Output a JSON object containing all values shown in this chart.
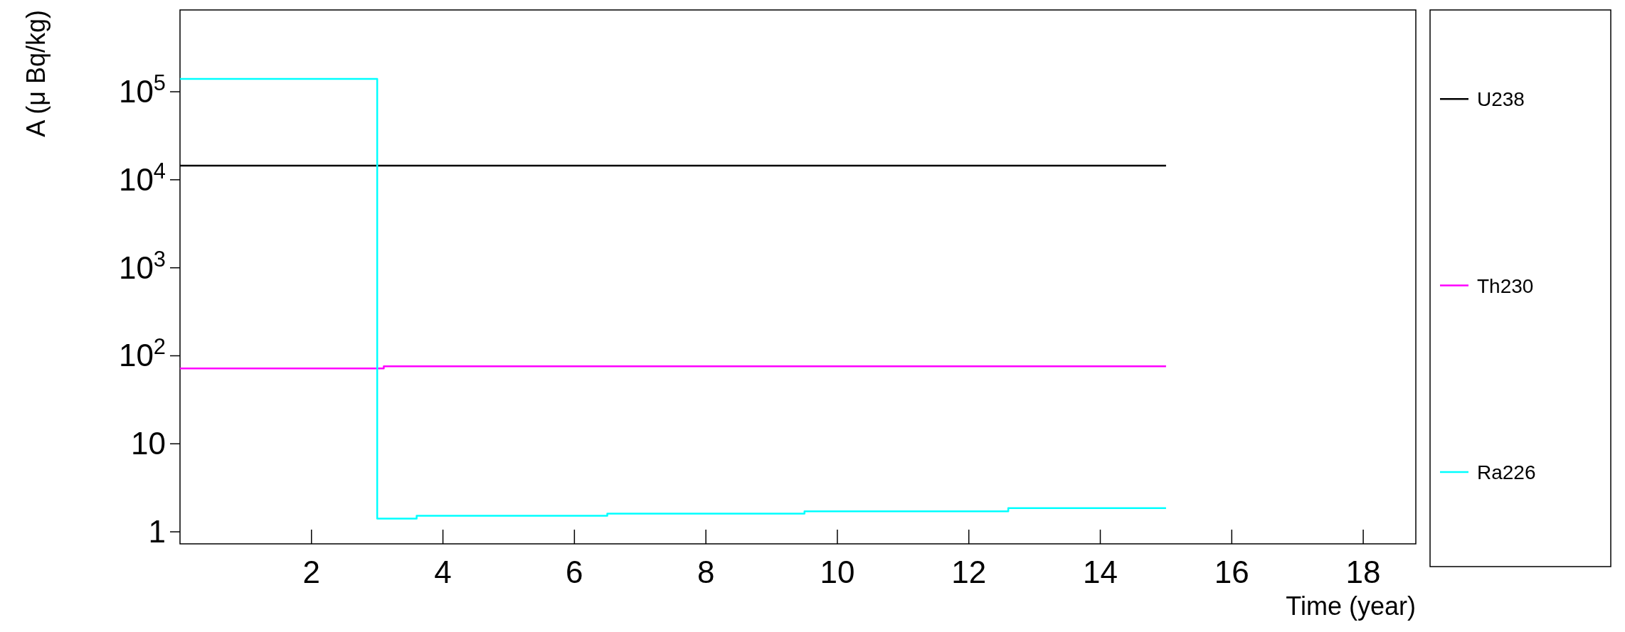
{
  "chart_data": {
    "type": "step",
    "xlabel": "Time (year)",
    "ylabel": "A (μ Bq/kg)",
    "log": "y",
    "xlim": [
      0,
      18.8
    ],
    "xticks": [
      2,
      4,
      6,
      8,
      10,
      12,
      14,
      16,
      18
    ],
    "ylim": [
      0.73,
      850000
    ],
    "yticks": [
      1,
      10,
      {
        "value": 100,
        "label": "10$^{2}$"
      },
      {
        "value": 1000,
        "label": "10$^{3}$"
      },
      {
        "value": 10000,
        "label": "10$^{4}$"
      },
      {
        "value": 100000,
        "label": "10$^{5}$"
      }
    ],
    "legend": "right",
    "grid": false,
    "series": [
      {
        "name": "U238",
        "color": "#000000",
        "x": [
          0,
          15
        ],
        "values": [
          14500,
          14500
        ]
      },
      {
        "name": "Th230",
        "color": "#ff00ff",
        "x": [
          0,
          3.1,
          15
        ],
        "values": [
          72,
          76,
          76
        ]
      },
      {
        "name": "Ra226",
        "color": "#00ffff",
        "x": [
          0,
          3,
          3.6,
          6.5,
          9.5,
          12.6,
          15
        ],
        "values": [
          140000,
          1.41,
          1.52,
          1.61,
          1.71,
          1.86,
          1.86
        ]
      }
    ]
  }
}
